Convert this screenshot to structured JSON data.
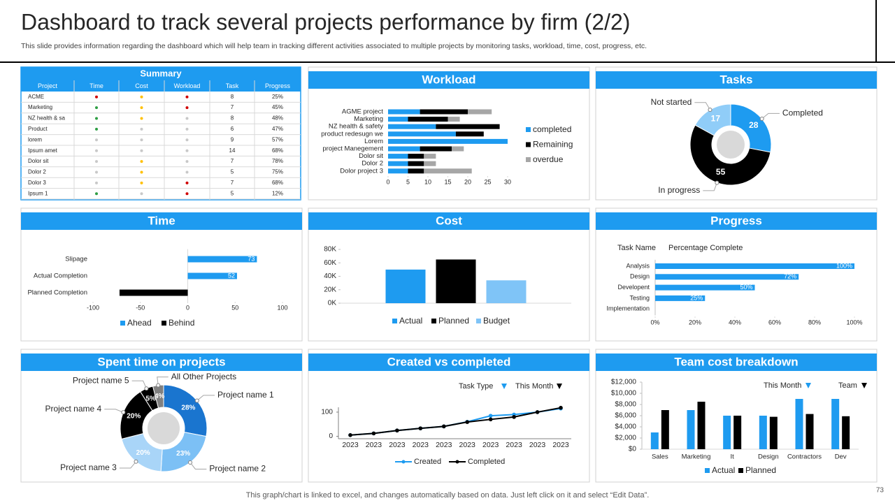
{
  "header": {
    "title": "Dashboard to track several projects performance by firm (2/2)",
    "subtitle": "This slide provides information regarding the dashboard which will help team in tracking  different activities associated to multiple projects by monitoring tasks, workload, time, cost, progress, etc."
  },
  "table": {
    "title": "Summary",
    "columns": [
      "Project",
      "Time",
      "Cost",
      "Workload",
      "Task",
      "Progress"
    ],
    "rows": [
      [
        "ACME",
        "#d00000",
        "#ffc000",
        "#d00000",
        "8",
        "25%"
      ],
      [
        "Marketing",
        "#2e9e44",
        "#ffc000",
        "#d00000",
        "7",
        "45%"
      ],
      [
        "NZ health & sa",
        "#2e9e44",
        "#ffc000",
        "#c8c8c8",
        "8",
        "48%"
      ],
      [
        "Product",
        "#2e9e44",
        "#c8c8c8",
        "#c8c8c8",
        "6",
        "47%"
      ],
      [
        "lorem",
        "#c8c8c8",
        "#c8c8c8",
        "#c8c8c8",
        "9",
        "57%"
      ],
      [
        "Ipsum amet",
        "#c8c8c8",
        "#c8c8c8",
        "#c8c8c8",
        "14",
        "68%"
      ],
      [
        "Dolor sit",
        "#c8c8c8",
        "#ffc000",
        "#c8c8c8",
        "7",
        "78%"
      ],
      [
        "Dolor 2",
        "#c8c8c8",
        "#ffc000",
        "#c8c8c8",
        "5",
        "75%"
      ],
      [
        "Dolor 3",
        "#c8c8c8",
        "#ffc000",
        "#d00000",
        "7",
        "68%"
      ],
      [
        "Ipsum 1",
        "#2e9e44",
        "#c8c8c8",
        "#d00000",
        "5",
        "12%"
      ]
    ]
  },
  "chart_data": [
    {
      "type": "bar",
      "orientation": "horizontal",
      "stacked": true,
      "title": "Workload",
      "categories": [
        "AGME project",
        "Marketing",
        "NZ health & safety",
        "product redesugn we",
        "Lorem",
        "project Manegement",
        "Dolor sit",
        "Dolor 2",
        "Dolor project 3"
      ],
      "series": [
        {
          "name": "completed",
          "color": "#1e9bf0",
          "values": [
            8,
            5,
            12,
            17,
            30,
            8,
            5,
            5,
            5
          ]
        },
        {
          "name": "Remaining",
          "color": "#000000",
          "values": [
            12,
            10,
            16,
            7,
            0,
            8,
            4,
            4,
            4
          ]
        },
        {
          "name": "overdue",
          "color": "#a6a6a6",
          "values": [
            6,
            3,
            0,
            0,
            0,
            3,
            3,
            3,
            12
          ]
        }
      ],
      "xlim": [
        0,
        30
      ],
      "xticks": [
        0,
        5,
        10,
        15,
        20,
        25,
        30
      ],
      "legend": "right"
    },
    {
      "type": "pie",
      "donut": true,
      "title": "Tasks",
      "categories": [
        "Completed",
        "In progress",
        "Not started"
      ],
      "values": [
        28,
        55,
        17
      ],
      "colors": [
        "#1e9bf0",
        "#000000",
        "#90cdf8"
      ]
    },
    {
      "type": "bar",
      "orientation": "horizontal",
      "stacked": true,
      "title": "Time",
      "categories": [
        "Slipage",
        "Actual Completion",
        "Planned Completion"
      ],
      "series": [
        {
          "name": "Ahead",
          "color": "#1e9bf0",
          "values": [
            73,
            52,
            0
          ],
          "data_labels": true
        },
        {
          "name": "Behind",
          "color": "#000000",
          "values": [
            null,
            null,
            -72
          ]
        }
      ],
      "xlim": [
        -100,
        100
      ],
      "xticks": [
        -100,
        -50,
        0,
        50,
        100
      ],
      "legend": "bottom"
    },
    {
      "type": "bar",
      "title": "Cost",
      "categories": [
        null
      ],
      "series": [
        {
          "name": "Actual",
          "color": "#1e9bf0",
          "values": [
            50000
          ]
        },
        {
          "name": "Planned",
          "color": "#000000",
          "values": [
            65000
          ]
        },
        {
          "name": "Budget",
          "color": "#7fc4f7",
          "values": [
            34000
          ]
        }
      ],
      "ylim": [
        0,
        80000
      ],
      "yticks": [
        {
          "value": 0,
          "label": "0K"
        },
        {
          "value": 20000,
          "label": "20K"
        },
        {
          "value": 40000,
          "label": "40K"
        },
        {
          "value": 60000,
          "label": "60K"
        },
        {
          "value": 80000,
          "label": "80K"
        }
      ],
      "legend": "bottom"
    },
    {
      "type": "bar",
      "orientation": "horizontal",
      "title": "Progress",
      "column_headers": [
        "Task Name",
        "Percentage Complete"
      ],
      "categories": [
        "Analysis",
        "Design",
        "Developent",
        "Testing",
        "Implementation"
      ],
      "values": [
        100,
        72,
        50,
        25,
        null
      ],
      "value_labels": [
        "100%",
        "72%",
        "50%",
        "25%",
        null
      ],
      "color": "#1e9bf0",
      "xlim": [
        0,
        100
      ],
      "xticks": [
        {
          "value": 0,
          "label": "0%"
        },
        {
          "value": 20,
          "label": "20%"
        },
        {
          "value": 40,
          "label": "40%"
        },
        {
          "value": 60,
          "label": "60%"
        },
        {
          "value": 80,
          "label": "80%"
        },
        {
          "value": 100,
          "label": "100%"
        }
      ]
    },
    {
      "type": "pie",
      "donut": true,
      "title": "Spent time on projects",
      "categories": [
        "Project name 1",
        "Project name 2",
        "Project name 3",
        "Project name 4",
        "Project name 5",
        "All Other Projects"
      ],
      "values": [
        28,
        23,
        20,
        20,
        5,
        4
      ],
      "value_labels": [
        "28%",
        "23%",
        "20%",
        "20%",
        "5%",
        "4%"
      ],
      "colors": [
        "#1a75cf",
        "#7cc0f5",
        "#a9d5f8",
        "#000000",
        "#000000",
        "#808080"
      ]
    },
    {
      "type": "line",
      "title": "Created vs completed",
      "annotations": [
        "Task Type",
        "This Month"
      ],
      "categories": [
        "2023",
        "2023",
        "2023",
        "2023",
        "2023",
        "2023",
        "2023",
        "2023",
        "2023",
        "2023"
      ],
      "series": [
        {
          "name": "Created",
          "color": "#1e9bf0",
          "values": [
            5,
            12,
            24,
            33,
            41,
            60,
            85,
            90,
            100,
            115
          ]
        },
        {
          "name": "Completed",
          "color": "#000000",
          "values": [
            5,
            12,
            24,
            33,
            41,
            59,
            70,
            80,
            100,
            118
          ]
        }
      ],
      "ylim": [
        -10,
        120
      ],
      "yticks": [
        0,
        100
      ],
      "legend": "bottom"
    },
    {
      "type": "bar",
      "title": "Team cost breakdown",
      "annotations": [
        "This Month",
        "Team"
      ],
      "categories": [
        "Sales",
        "Marketing",
        "It",
        "Design",
        "Contractors",
        "Dev"
      ],
      "series": [
        {
          "name": "Actual",
          "color": "#1e9bf0",
          "values": [
            3000,
            7000,
            6000,
            6000,
            9000,
            9000
          ]
        },
        {
          "name": "Planned",
          "color": "#000000",
          "values": [
            7000,
            8500,
            6000,
            5800,
            6300,
            5900
          ]
        }
      ],
      "ylim": [
        0,
        12000
      ],
      "yticks": [
        {
          "value": 0,
          "label": "$0"
        },
        {
          "value": 2000,
          "label": "$2,000"
        },
        {
          "value": 4000,
          "label": "$4,000"
        },
        {
          "value": 6000,
          "label": "$6,000"
        },
        {
          "value": 8000,
          "label": "$8,000"
        },
        {
          "value": 10000,
          "label": "$10,000"
        },
        {
          "value": 12000,
          "label": "$12,000"
        }
      ],
      "legend": "bottom"
    }
  ],
  "footer": {
    "note": "This graph/chart is linked to excel, and changes automatically based on data. Just left click on it and select “Edit Data”.",
    "page": "73"
  }
}
